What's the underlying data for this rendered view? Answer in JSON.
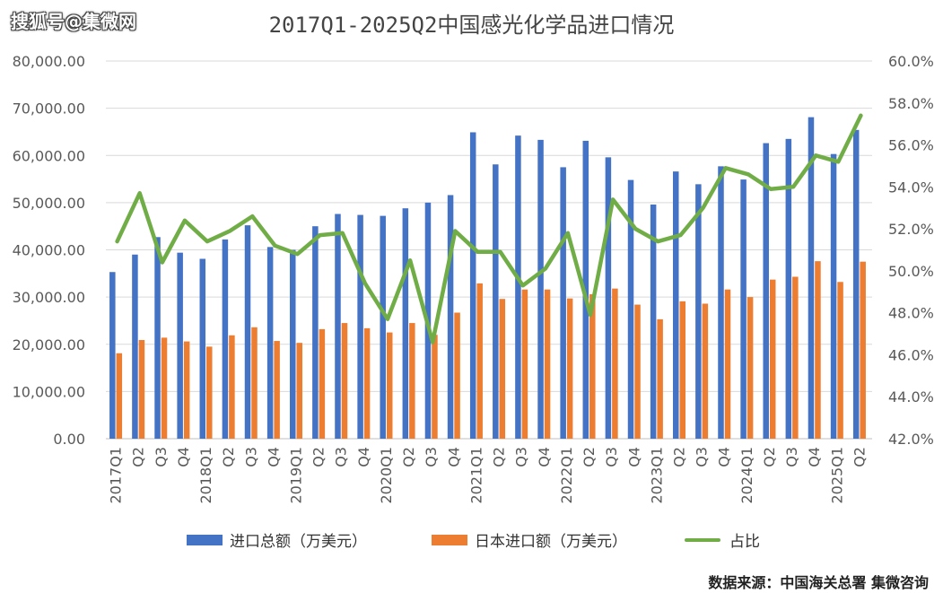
{
  "watermark": "搜狐号@集微网",
  "source": "数据来源：中国海关总署 集微咨询",
  "colors": {
    "total": "#4472C4",
    "japan": "#ED7D31",
    "share": "#70AD47",
    "grid": "#D9D9D9",
    "text": "#595959"
  },
  "chart_data": {
    "type": "bar",
    "title": "2017Q1-2025Q2中国感光化学品进口情况",
    "categories": [
      "2017Q1",
      "Q2",
      "Q3",
      "Q4",
      "2018Q1",
      "Q2",
      "Q3",
      "Q4",
      "2019Q1",
      "Q2",
      "Q3",
      "Q4",
      "2020Q1",
      "Q2",
      "Q3",
      "Q4",
      "2021Q1",
      "Q2",
      "Q3",
      "Q4",
      "2022Q1",
      "Q2",
      "Q3",
      "Q4",
      "2023Q1",
      "Q2",
      "Q3",
      "Q4",
      "2024Q1",
      "Q2",
      "Q3",
      "Q4",
      "2025Q1",
      "Q2"
    ],
    "series": [
      {
        "name": "进口总额（万美元）",
        "type": "bar",
        "axis": "left",
        "values": [
          35300,
          39000,
          42700,
          39400,
          38100,
          42200,
          45200,
          40600,
          40000,
          45000,
          47600,
          47400,
          47200,
          48800,
          50000,
          51600,
          64900,
          58100,
          64200,
          63300,
          57500,
          63100,
          59600,
          54800,
          49600,
          56600,
          53900,
          57700,
          54900,
          62600,
          63500,
          68100,
          60300,
          65400
        ]
      },
      {
        "name": "日本进口额（万美元）",
        "type": "bar",
        "axis": "left",
        "values": [
          18100,
          20900,
          21400,
          20600,
          19500,
          21900,
          23600,
          20700,
          20300,
          23200,
          24500,
          23400,
          22500,
          24500,
          22000,
          26700,
          32900,
          29600,
          31600,
          31600,
          29700,
          30600,
          31800,
          28400,
          25300,
          29100,
          28600,
          31600,
          30000,
          33700,
          34300,
          37600,
          33200,
          37500
        ]
      },
      {
        "name": "占比",
        "type": "line",
        "axis": "right",
        "unit": "%",
        "values": [
          51.4,
          53.7,
          50.4,
          52.4,
          51.4,
          51.9,
          52.6,
          51.2,
          50.8,
          51.7,
          51.8,
          49.4,
          47.7,
          50.5,
          46.6,
          51.9,
          50.9,
          50.9,
          49.3,
          50.1,
          51.8,
          47.9,
          53.4,
          52.0,
          51.4,
          51.7,
          53.0,
          54.9,
          54.6,
          53.9,
          54.0,
          55.5,
          55.2,
          57.4
        ]
      }
    ],
    "ylim": [
      0,
      80000
    ],
    "yticks": [
      "0.00",
      "10,000.00",
      "20,000.00",
      "30,000.00",
      "40,000.00",
      "50,000.00",
      "60,000.00",
      "70,000.00",
      "80,000.00"
    ],
    "y2lim": [
      42,
      60
    ],
    "y2ticks": [
      "42.0%",
      "44.0%",
      "46.0%",
      "48.0%",
      "50.0%",
      "52.0%",
      "54.0%",
      "56.0%",
      "58.0%",
      "60.0%"
    ],
    "grid": true,
    "legend_position": "bottom"
  }
}
